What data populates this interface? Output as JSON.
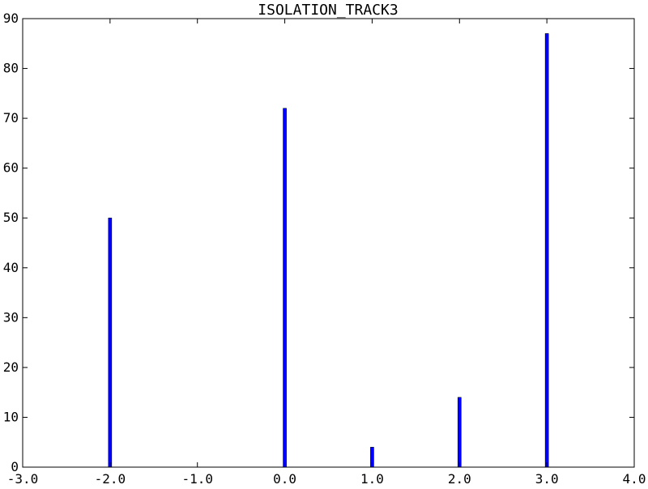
{
  "chart_data": {
    "type": "bar",
    "title": "ISOLATION_TRACK3",
    "xlabel": "",
    "ylabel": "",
    "xlim": [
      -3.0,
      4.0
    ],
    "ylim": [
      0,
      90
    ],
    "x_ticks": [
      -3.0,
      -2.0,
      -1.0,
      0.0,
      1.0,
      2.0,
      3.0,
      4.0
    ],
    "x_tick_labels": [
      "-3.0",
      "-2.0",
      "-1.0",
      "0.0",
      "1.0",
      "2.0",
      "3.0",
      "4.0"
    ],
    "y_ticks": [
      0,
      10,
      20,
      30,
      40,
      50,
      60,
      70,
      80,
      90
    ],
    "y_tick_labels": [
      "0",
      "10",
      "20",
      "30",
      "40",
      "50",
      "60",
      "70",
      "80",
      "90"
    ],
    "grid": false,
    "series": [
      {
        "x": [
          -2.0,
          0.0,
          1.0,
          2.0,
          3.0
        ],
        "values": [
          50,
          72,
          4,
          14,
          87
        ],
        "color": "#0000ff"
      }
    ]
  }
}
